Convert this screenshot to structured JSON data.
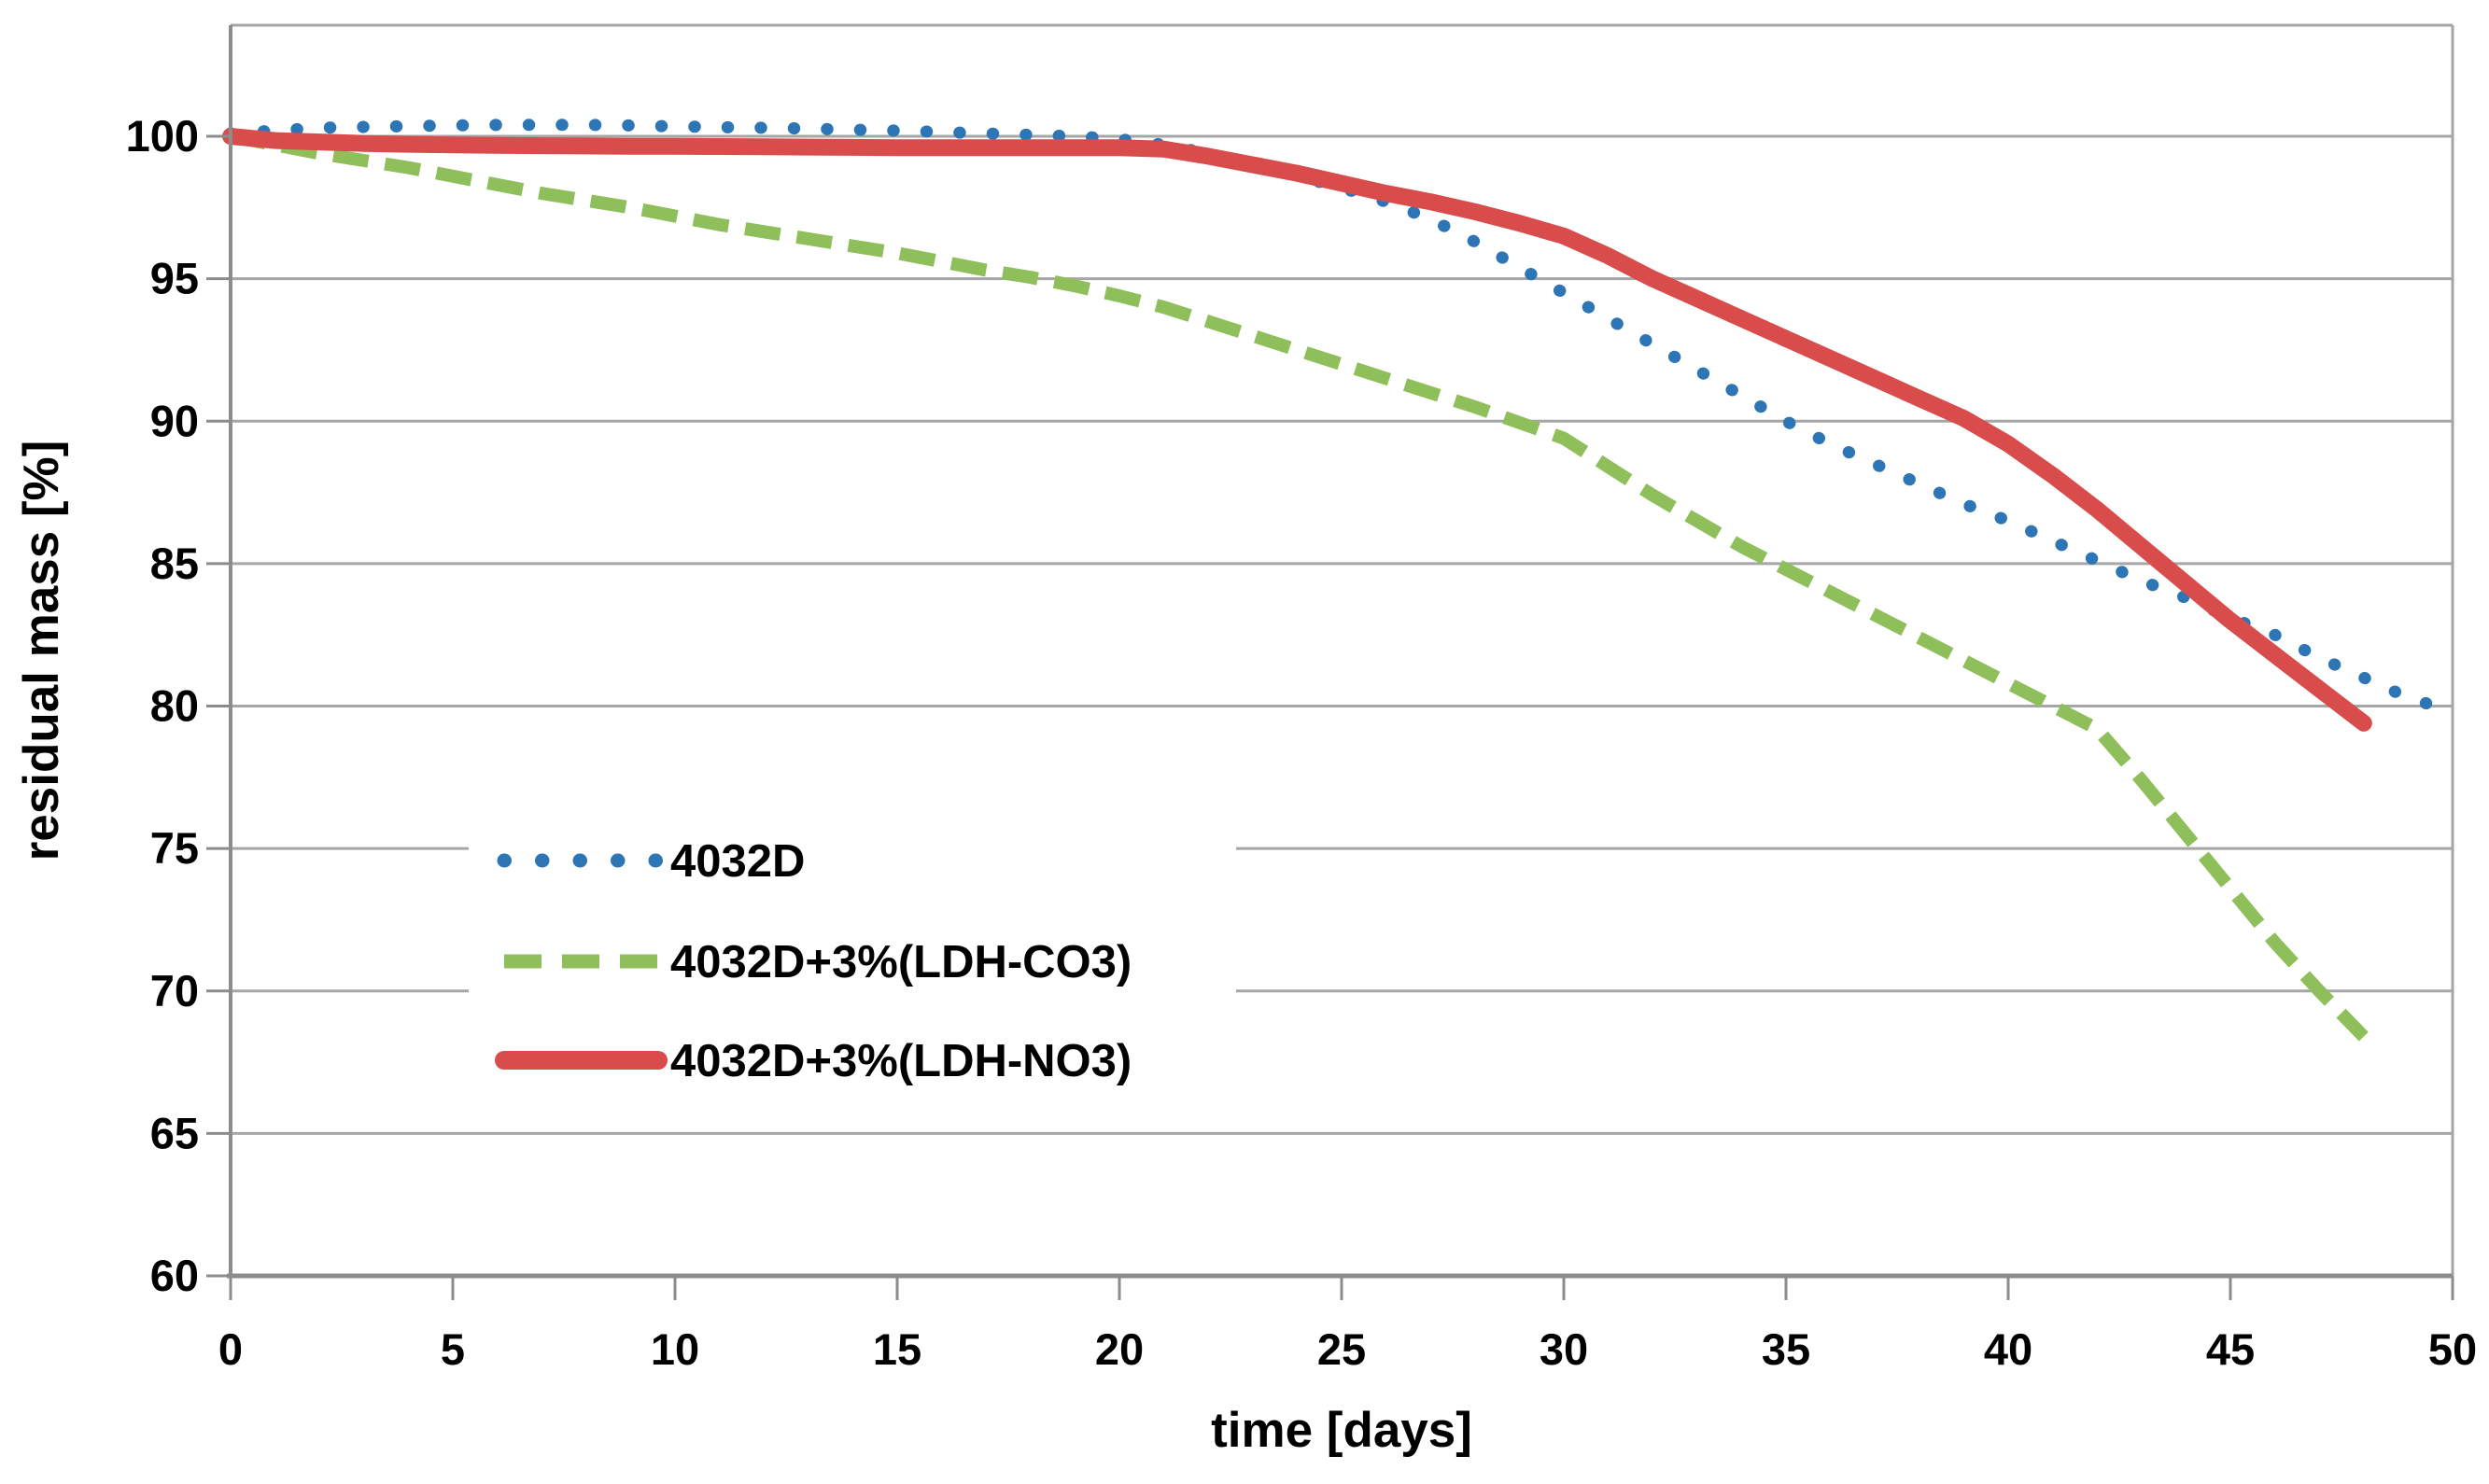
{
  "chart_data": {
    "type": "line",
    "title": "",
    "xlabel": "time [days]",
    "ylabel": "residual mass [%]",
    "xlim": [
      0,
      50
    ],
    "ylim": [
      60,
      103.9
    ],
    "xticks": [
      0,
      5,
      10,
      15,
      20,
      25,
      30,
      35,
      40,
      45,
      50
    ],
    "yticks": [
      60,
      65,
      70,
      75,
      80,
      85,
      90,
      95,
      100
    ],
    "grid": "horizontal-on",
    "legend_position": "inside-left-middle",
    "plot_bg_color": "#FFFFFF",
    "grid_color": "#A6A6A6",
    "axis_color": "#8C8C8C",
    "text_color": "#000000",
    "series": [
      {
        "name": "4032D",
        "color": "#2E75B6",
        "style": "dotted",
        "x": [
          0,
          1,
          2,
          3,
          4,
          5,
          6,
          7,
          8,
          9,
          10,
          11,
          12,
          13,
          14,
          15,
          16,
          17,
          18,
          19,
          20,
          21,
          22,
          23,
          24,
          25,
          26,
          27,
          28,
          29,
          30,
          31,
          32,
          33,
          34,
          35,
          36,
          37,
          38,
          39,
          40,
          41,
          42,
          43,
          44,
          45,
          46,
          47,
          48,
          49,
          50
        ],
        "y": [
          100.1,
          100.2,
          100.3,
          100.33,
          100.36,
          100.38,
          100.4,
          100.4,
          100.4,
          100.38,
          100.35,
          100.32,
          100.3,
          100.27,
          100.23,
          100.2,
          100.15,
          100.1,
          100.05,
          100.0,
          99.9,
          99.7,
          99.4,
          99.0,
          98.6,
          98.2,
          97.7,
          97.1,
          96.3,
          95.4,
          94.5,
          93.6,
          92.7,
          91.8,
          90.9,
          90.0,
          89.2,
          88.5,
          87.8,
          87.1,
          86.5,
          85.8,
          85.1,
          84.4,
          83.8,
          83.1,
          82.5,
          81.7,
          81.0,
          80.3,
          79.8
        ]
      },
      {
        "name": "4032D+3%(LDH-CO3)",
        "color": "#8FBF5B",
        "style": "dashed",
        "x": [
          0,
          1,
          2,
          3,
          4,
          5,
          6,
          7,
          8,
          9,
          10,
          11,
          12,
          13,
          14,
          15,
          16,
          17,
          18,
          19,
          20,
          21,
          22,
          23,
          24,
          25,
          26,
          27,
          28,
          29,
          30,
          31,
          32,
          33,
          34,
          35,
          36,
          37,
          38,
          39,
          40,
          41,
          42,
          43,
          44,
          45,
          46,
          47,
          48
        ],
        "y": [
          100.0,
          99.7,
          99.4,
          99.15,
          98.9,
          98.6,
          98.3,
          98.0,
          97.75,
          97.5,
          97.2,
          96.9,
          96.65,
          96.4,
          96.15,
          95.9,
          95.6,
          95.3,
          95.05,
          94.75,
          94.4,
          94.0,
          93.5,
          93.0,
          92.5,
          92.0,
          91.5,
          91.0,
          90.5,
          89.95,
          89.4,
          88.4,
          87.4,
          86.5,
          85.6,
          84.8,
          84.0,
          83.2,
          82.4,
          81.6,
          80.8,
          80.0,
          79.2,
          77.4,
          75.5,
          73.6,
          71.7,
          70.0,
          68.4
        ]
      },
      {
        "name": "4032D+3%(LDH-NO3)",
        "color": "#D94C4C",
        "style": "solid",
        "x": [
          0,
          1,
          2,
          3,
          4,
          5,
          6,
          7,
          8,
          9,
          10,
          11,
          12,
          13,
          14,
          15,
          16,
          17,
          18,
          19,
          20,
          21,
          22,
          23,
          24,
          25,
          26,
          27,
          28,
          29,
          30,
          31,
          32,
          33,
          34,
          35,
          36,
          37,
          38,
          39,
          40,
          41,
          42,
          43,
          44,
          45,
          46,
          47,
          48
        ],
        "y": [
          100.0,
          99.85,
          99.8,
          99.75,
          99.72,
          99.7,
          99.68,
          99.67,
          99.66,
          99.65,
          99.65,
          99.64,
          99.63,
          99.62,
          99.61,
          99.6,
          99.6,
          99.6,
          99.6,
          99.6,
          99.6,
          99.55,
          99.3,
          99.0,
          98.7,
          98.35,
          98.0,
          97.7,
          97.35,
          96.95,
          96.5,
          95.8,
          95.0,
          94.3,
          93.6,
          92.9,
          92.2,
          91.5,
          90.8,
          90.1,
          89.2,
          88.1,
          86.9,
          85.6,
          84.3,
          83.0,
          81.8,
          80.6,
          79.4
        ]
      }
    ]
  }
}
